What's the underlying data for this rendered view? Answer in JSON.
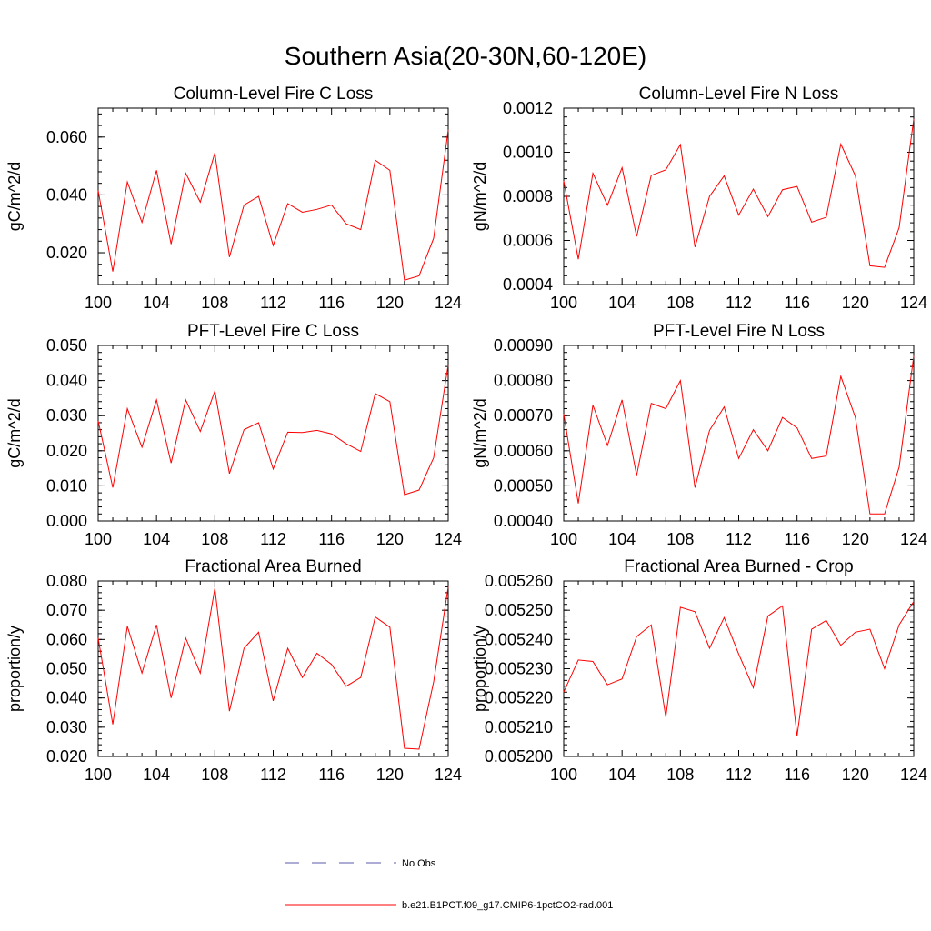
{
  "figure": {
    "title": "Southern Asia(20-30N,60-120E)"
  },
  "legend": {
    "entries": [
      {
        "label": "No Obs",
        "style": "dashed",
        "color": "#5a5aa8"
      },
      {
        "label": "b.e21.B1PCT.f09_g17.CMIP6-1pctCO2-rad.001",
        "style": "solid",
        "color": "#ff0000"
      }
    ]
  },
  "chart_data": [
    {
      "type": "line",
      "title": "Column-Level Fire C Loss",
      "ylabel": "gC/m^2/d",
      "xlim": [
        100,
        124
      ],
      "ylim": [
        0.009,
        0.07
      ],
      "xticks": [
        100,
        104,
        108,
        112,
        116,
        120,
        124
      ],
      "xtick_labels": [
        "100",
        "104",
        "108",
        "112",
        "116",
        "120",
        "124"
      ],
      "yticks": [
        0.02,
        0.04,
        0.06
      ],
      "ytick_labels": [
        "0.020",
        "0.040",
        "0.060"
      ],
      "x": [
        100,
        101,
        102,
        103,
        104,
        105,
        106,
        107,
        108,
        109,
        110,
        111,
        112,
        113,
        114,
        115,
        116,
        117,
        118,
        119,
        120,
        121,
        122,
        123,
        124
      ],
      "series": [
        {
          "name": "b.e21.B1PCT.f09_g17.CMIP6-1pctCO2-rad.001",
          "color": "#ff0000",
          "values": [
            0.0415,
            0.0135,
            0.0445,
            0.0305,
            0.0485,
            0.023,
            0.0475,
            0.0375,
            0.0545,
            0.0185,
            0.0365,
            0.0395,
            0.0225,
            0.037,
            0.034,
            0.035,
            0.0365,
            0.03,
            0.028,
            0.052,
            0.0485,
            0.0105,
            0.012,
            0.025,
            0.0625
          ]
        }
      ]
    },
    {
      "type": "line",
      "title": "Column-Level Fire N Loss",
      "ylabel": "gN/m^2/d",
      "xlim": [
        100,
        124
      ],
      "ylim": [
        0.0004,
        0.0012
      ],
      "xticks": [
        100,
        104,
        108,
        112,
        116,
        120,
        124
      ],
      "xtick_labels": [
        "100",
        "104",
        "108",
        "112",
        "116",
        "120",
        "124"
      ],
      "yticks": [
        0.0004,
        0.0006,
        0.0008,
        0.001,
        0.0012
      ],
      "ytick_labels": [
        "0.0004",
        "0.0006",
        "0.0008",
        "0.0010",
        "0.0012"
      ],
      "x": [
        100,
        101,
        102,
        103,
        104,
        105,
        106,
        107,
        108,
        109,
        110,
        111,
        112,
        113,
        114,
        115,
        116,
        117,
        118,
        119,
        120,
        121,
        122,
        123,
        124
      ],
      "series": [
        {
          "name": "b.e21.B1PCT.f09_g17.CMIP6-1pctCO2-rad.001",
          "color": "#ff0000",
          "values": [
            0.00087,
            0.000515,
            0.000905,
            0.00076,
            0.00093,
            0.000618,
            0.000895,
            0.00092,
            0.001035,
            0.00057,
            0.0008,
            0.000893,
            0.000715,
            0.000833,
            0.000708,
            0.00083,
            0.000845,
            0.000683,
            0.000705,
            0.001037,
            0.000893,
            0.000485,
            0.000478,
            0.000658,
            0.00115
          ]
        }
      ]
    },
    {
      "type": "line",
      "title": "PFT-Level Fire C Loss",
      "ylabel": "gC/m^2/d",
      "xlim": [
        100,
        124
      ],
      "ylim": [
        0.0,
        0.05
      ],
      "xticks": [
        100,
        104,
        108,
        112,
        116,
        120,
        124
      ],
      "xtick_labels": [
        "100",
        "104",
        "108",
        "112",
        "116",
        "120",
        "124"
      ],
      "yticks": [
        0.0,
        0.01,
        0.02,
        0.03,
        0.04,
        0.05
      ],
      "ytick_labels": [
        "0.000",
        "0.010",
        "0.020",
        "0.030",
        "0.040",
        "0.050"
      ],
      "x": [
        100,
        101,
        102,
        103,
        104,
        105,
        106,
        107,
        108,
        109,
        110,
        111,
        112,
        113,
        114,
        115,
        116,
        117,
        118,
        119,
        120,
        121,
        122,
        123,
        124
      ],
      "series": [
        {
          "name": "b.e21.B1PCT.f09_g17.CMIP6-1pctCO2-rad.001",
          "color": "#ff0000",
          "values": [
            0.0285,
            0.0095,
            0.032,
            0.021,
            0.0345,
            0.0165,
            0.0345,
            0.0255,
            0.037,
            0.0135,
            0.026,
            0.028,
            0.0148,
            0.0253,
            0.0252,
            0.0258,
            0.0248,
            0.022,
            0.0198,
            0.0363,
            0.034,
            0.0075,
            0.0088,
            0.018,
            0.0445
          ]
        }
      ]
    },
    {
      "type": "line",
      "title": "PFT-Level Fire N Loss",
      "ylabel": "gN/m^2/d",
      "xlim": [
        100,
        124
      ],
      "ylim": [
        0.0004,
        0.0009
      ],
      "xticks": [
        100,
        104,
        108,
        112,
        116,
        120,
        124
      ],
      "xtick_labels": [
        "100",
        "104",
        "108",
        "112",
        "116",
        "120",
        "124"
      ],
      "yticks": [
        0.0004,
        0.0005,
        0.0006,
        0.0007,
        0.0008,
        0.0009
      ],
      "ytick_labels": [
        "0.00040",
        "0.00050",
        "0.00060",
        "0.00070",
        "0.00080",
        "0.00090"
      ],
      "x": [
        100,
        101,
        102,
        103,
        104,
        105,
        106,
        107,
        108,
        109,
        110,
        111,
        112,
        113,
        114,
        115,
        116,
        117,
        118,
        119,
        120,
        121,
        122,
        123,
        124
      ],
      "series": [
        {
          "name": "b.e21.B1PCT.f09_g17.CMIP6-1pctCO2-rad.001",
          "color": "#ff0000",
          "values": [
            0.000705,
            0.00045,
            0.00073,
            0.000615,
            0.000745,
            0.00053,
            0.000735,
            0.00072,
            0.0008,
            0.000495,
            0.000658,
            0.000725,
            0.000578,
            0.00066,
            0.0006,
            0.000695,
            0.000665,
            0.000578,
            0.000585,
            0.000812,
            0.000695,
            0.00042,
            0.00042,
            0.000553,
            0.00087
          ]
        }
      ]
    },
    {
      "type": "line",
      "title": "Fractional Area Burned",
      "ylabel": "proportion/y",
      "xlim": [
        100,
        124
      ],
      "ylim": [
        0.02,
        0.08
      ],
      "xticks": [
        100,
        104,
        108,
        112,
        116,
        120,
        124
      ],
      "xtick_labels": [
        "100",
        "104",
        "108",
        "112",
        "116",
        "120",
        "124"
      ],
      "yticks": [
        0.02,
        0.03,
        0.04,
        0.05,
        0.06,
        0.07,
        0.08
      ],
      "ytick_labels": [
        "0.020",
        "0.030",
        "0.040",
        "0.050",
        "0.060",
        "0.070",
        "0.080"
      ],
      "x": [
        100,
        101,
        102,
        103,
        104,
        105,
        106,
        107,
        108,
        109,
        110,
        111,
        112,
        113,
        114,
        115,
        116,
        117,
        118,
        119,
        120,
        121,
        122,
        123,
        124
      ],
      "series": [
        {
          "name": "b.e21.B1PCT.f09_g17.CMIP6-1pctCO2-rad.001",
          "color": "#ff0000",
          "values": [
            0.0605,
            0.031,
            0.0645,
            0.0485,
            0.065,
            0.04,
            0.0605,
            0.0485,
            0.0775,
            0.0355,
            0.057,
            0.0625,
            0.039,
            0.057,
            0.047,
            0.0553,
            0.0515,
            0.044,
            0.047,
            0.0677,
            0.0642,
            0.0228,
            0.0225,
            0.0455,
            0.078
          ]
        }
      ]
    },
    {
      "type": "line",
      "title": "Fractional Area Burned - Crop",
      "ylabel": "proportion/y",
      "xlim": [
        100,
        124
      ],
      "ylim": [
        0.0052,
        0.00526
      ],
      "xticks": [
        100,
        104,
        108,
        112,
        116,
        120,
        124
      ],
      "xtick_labels": [
        "100",
        "104",
        "108",
        "112",
        "116",
        "120",
        "124"
      ],
      "yticks": [
        0.0052,
        0.00521,
        0.00522,
        0.00523,
        0.00524,
        0.00525,
        0.00526
      ],
      "ytick_labels": [
        "0.005200",
        "0.005210",
        "0.005220",
        "0.005230",
        "0.005240",
        "0.005250",
        "0.005260"
      ],
      "x": [
        100,
        101,
        102,
        103,
        104,
        105,
        106,
        107,
        108,
        109,
        110,
        111,
        112,
        113,
        114,
        115,
        116,
        117,
        118,
        119,
        120,
        121,
        122,
        123,
        124
      ],
      "series": [
        {
          "name": "b.e21.B1PCT.f09_g17.CMIP6-1pctCO2-rad.001",
          "color": "#ff0000",
          "values": [
            0.005222,
            0.005233,
            0.0052325,
            0.0052245,
            0.0052265,
            0.005241,
            0.005245,
            0.0052135,
            0.005251,
            0.0052495,
            0.005237,
            0.0052475,
            0.005235,
            0.0052235,
            0.005248,
            0.0052515,
            0.005207,
            0.0052435,
            0.0052465,
            0.005238,
            0.0052425,
            0.0052435,
            0.00523,
            0.005245,
            0.005253
          ]
        }
      ]
    }
  ]
}
